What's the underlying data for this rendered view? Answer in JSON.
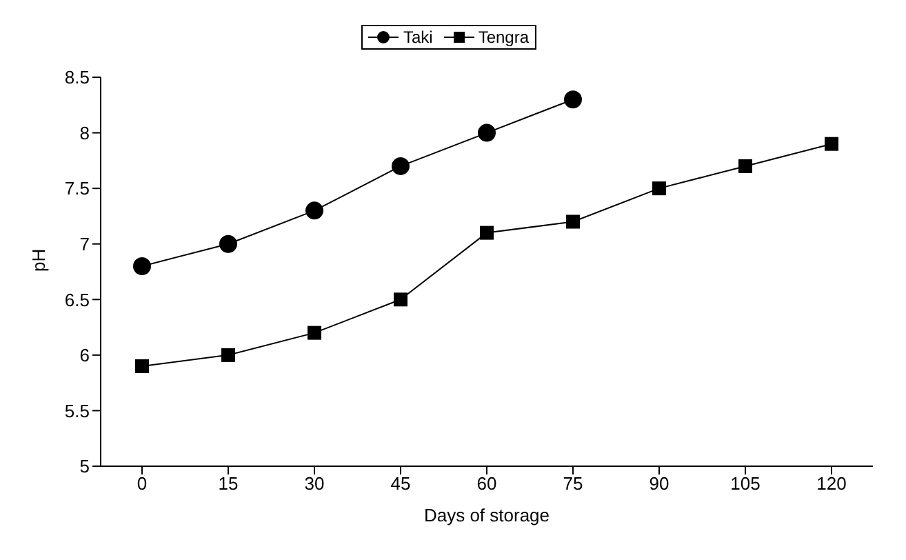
{
  "chart_data": {
    "type": "line",
    "xlabel": "Days of storage",
    "ylabel": "pH",
    "categories": [
      "0",
      "15",
      "30",
      "45",
      "60",
      "75",
      "90",
      "105",
      "120"
    ],
    "series": [
      {
        "name": "Taki",
        "color": "#000000",
        "marker": "circle",
        "values": [
          6.8,
          7.0,
          7.3,
          7.7,
          8.0,
          8.3,
          null,
          null,
          null
        ]
      },
      {
        "name": "Tengra",
        "color": "#000000",
        "marker": "square",
        "values": [
          5.9,
          6.0,
          6.2,
          6.5,
          7.1,
          7.2,
          7.5,
          7.7,
          7.9
        ]
      }
    ],
    "ylim": [
      5,
      8.5
    ],
    "yticks": [
      5,
      5.5,
      6,
      6.5,
      7,
      7.5,
      8,
      8.5
    ],
    "grid": false,
    "legend": "top",
    "line_style": "solid"
  }
}
